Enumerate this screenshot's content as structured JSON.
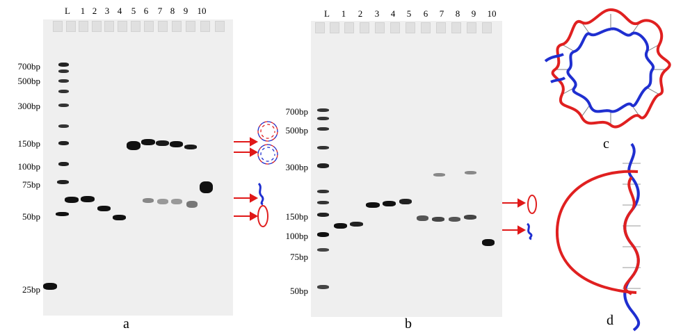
{
  "panel_a": {
    "label": "a",
    "lanes": [
      "L",
      "1",
      "2",
      "3",
      "4",
      "5",
      "6",
      "7",
      "8",
      "9",
      "10"
    ],
    "size_markers": [
      "700bp",
      "500bp",
      "300bp",
      "150bp",
      "100bp",
      "75bp",
      "50bp",
      "25bp"
    ]
  },
  "panel_b": {
    "label": "b",
    "lanes": [
      "L",
      "1",
      "2",
      "3",
      "4",
      "5",
      "6",
      "7",
      "8",
      "9",
      "10"
    ],
    "size_markers": [
      "700bp",
      "500bp",
      "300bp",
      "150bp",
      "100bp",
      "75bp",
      "50bp"
    ]
  },
  "panel_c": {
    "label": "c"
  },
  "panel_d": {
    "label": "d"
  },
  "colors": {
    "strand_red": "#e02020",
    "strand_blue": "#1f2fd0",
    "arrow": "#e01818",
    "gel_bg": "#efefef",
    "band": "#111111"
  }
}
